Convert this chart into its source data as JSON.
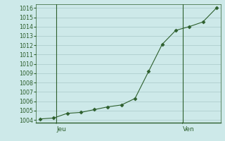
{
  "background_color": "#cde9e9",
  "plot_bg_color": "#cde9e9",
  "line_color": "#2d5f2d",
  "marker_color": "#2d5f2d",
  "grid_color": "#a8c8c8",
  "axis_color": "#2d5f2d",
  "tick_label_color": "#2d5f2d",
  "x_values": [
    0,
    1,
    2,
    3,
    4,
    5,
    6,
    7,
    8,
    9,
    10,
    11,
    12,
    13
  ],
  "y_values": [
    1004.1,
    1004.2,
    1004.7,
    1004.8,
    1005.1,
    1005.4,
    1005.6,
    1006.3,
    1009.2,
    1012.1,
    1013.6,
    1014.0,
    1014.5,
    1016.0
  ],
  "ylim": [
    1003.7,
    1016.4
  ],
  "yticks": [
    1004,
    1005,
    1006,
    1007,
    1008,
    1009,
    1010,
    1011,
    1012,
    1013,
    1014,
    1015,
    1016
  ],
  "xlim": [
    -0.3,
    13.3
  ],
  "jeu_x": 1.2,
  "ven_x": 10.5,
  "jeu_label": "Jeu",
  "ven_label": "Ven",
  "tick_fontsize": 5.8,
  "label_fontsize": 6.5
}
